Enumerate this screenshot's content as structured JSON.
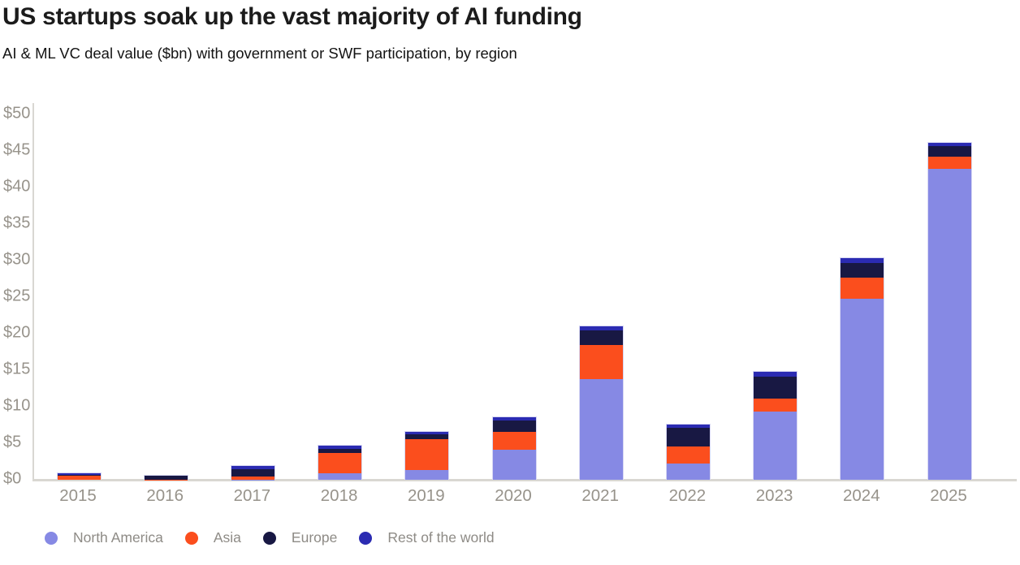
{
  "header": {
    "title": "US startups soak up the vast majority of AI funding",
    "subtitle": "AI & ML VC deal value ($bn) with government or SWF participation, by region"
  },
  "chart_data": {
    "type": "bar",
    "stacked": true,
    "title": "US startups soak up the vast majority of AI funding",
    "subtitle": "AI & ML VC deal value ($bn) with government or SWF participation, by region",
    "xlabel": "",
    "ylabel": "AI & ML VC deal value ($bn)",
    "ylim": [
      0,
      50
    ],
    "ytick_step": 5,
    "yticks": [
      "$0",
      "$5",
      "$10",
      "$15",
      "$20",
      "$25",
      "$30",
      "$35",
      "$40",
      "$45",
      "$50"
    ],
    "grid": false,
    "legend_position": "bottom",
    "categories": [
      "2015",
      "2016",
      "2017",
      "2018",
      "2019",
      "2020",
      "2021",
      "2022",
      "2023",
      "2024",
      "2025"
    ],
    "series": [
      {
        "name": "North America",
        "color": "#8689E4",
        "values": [
          0.0,
          0.0,
          0.05,
          0.9,
          1.35,
          4.1,
          13.8,
          2.2,
          9.3,
          24.8,
          42.6
        ]
      },
      {
        "name": "Asia",
        "color": "#FB4E1D",
        "values": [
          0.55,
          0.05,
          0.4,
          2.75,
          4.25,
          2.5,
          4.7,
          2.4,
          1.85,
          2.9,
          1.65
        ]
      },
      {
        "name": "Europe",
        "color": "#181843",
        "values": [
          0.15,
          0.55,
          1.05,
          0.6,
          0.6,
          1.55,
          1.9,
          2.5,
          2.95,
          1.95,
          1.4
        ]
      },
      {
        "name": "Rest of the world",
        "color": "#2B2BB2",
        "values": [
          0.2,
          0.0,
          0.35,
          0.45,
          0.35,
          0.45,
          0.65,
          0.45,
          0.65,
          0.65,
          0.45
        ]
      }
    ],
    "totals": [
      0.9,
      0.6,
      1.85,
      4.7,
      6.55,
      8.6,
      21.05,
      7.55,
      14.75,
      30.3,
      46.1
    ]
  },
  "colors": {
    "background": "#ffffff",
    "axis_line": "#d9d7d2",
    "tick_text": "#97938b",
    "legend_text": "#8e8b86",
    "bar_outline": "#d7d7f3",
    "title_text": "#1b1b1b"
  }
}
